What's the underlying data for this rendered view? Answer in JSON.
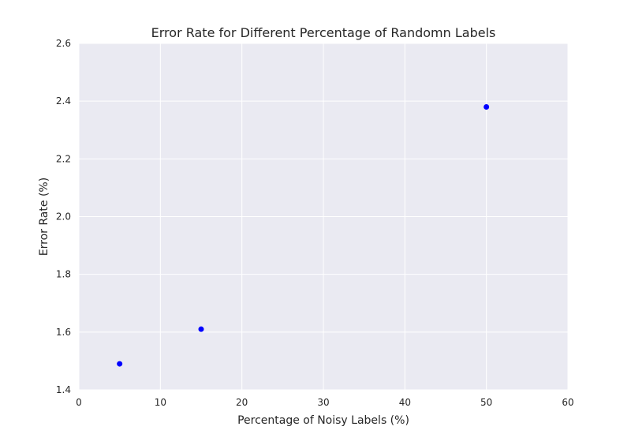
{
  "chart_data": {
    "type": "scatter",
    "title": "Error Rate for Different Percentage of Randomn Labels",
    "xlabel": "Percentage of Noisy Labels (%)",
    "ylabel": "Error Rate (%)",
    "xlim": [
      0,
      60
    ],
    "ylim": [
      1.4,
      2.6
    ],
    "xticks": [
      0,
      10,
      20,
      30,
      40,
      50,
      60
    ],
    "yticks": [
      1.4,
      1.6,
      1.8,
      2.0,
      2.2,
      2.4,
      2.6
    ],
    "xtick_labels": [
      "0",
      "10",
      "20",
      "30",
      "40",
      "50",
      "60"
    ],
    "ytick_labels": [
      "1.4",
      "1.6",
      "1.8",
      "2.0",
      "2.2",
      "2.4",
      "2.6"
    ],
    "grid": true,
    "series": [
      {
        "name": "Error Rate",
        "x": [
          5,
          15,
          50
        ],
        "y": [
          1.49,
          1.61,
          2.38
        ],
        "color": "#0000ff"
      }
    ],
    "colors": {
      "plot_background": "#eaeaf2",
      "grid": "#ffffff",
      "text": "#262626"
    }
  }
}
